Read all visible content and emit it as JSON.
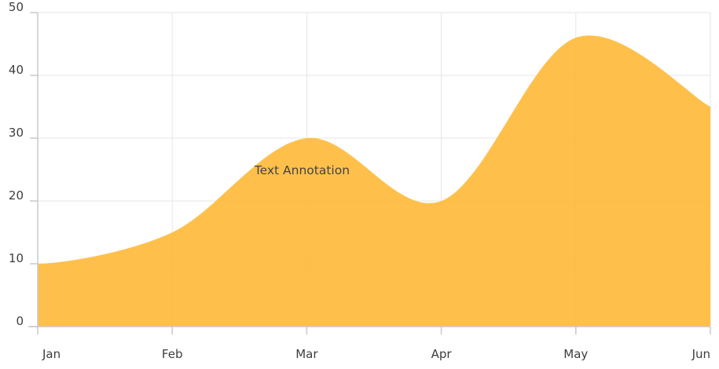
{
  "chart_data": {
    "type": "area",
    "categories": [
      "Jan",
      "Feb",
      "Mar",
      "Apr",
      "May",
      "Jun"
    ],
    "series": [
      {
        "values": [
          10,
          15,
          30,
          20,
          46,
          35
        ],
        "color": "#ffb732"
      }
    ],
    "title": "",
    "xlabel": "",
    "ylabel": "",
    "ylim": [
      0,
      50
    ],
    "yticks": [
      0,
      10,
      20,
      30,
      40,
      50
    ],
    "curve": "spline",
    "grid": true,
    "annotations": [
      {
        "text": "Text Annotation",
        "x": "Mar",
        "y": 25
      }
    ],
    "colors": {
      "area_fill": "#ffb732",
      "grid": "#e6e6e6",
      "axis": "#c8c8cf",
      "label": "#3d3d3d"
    }
  }
}
